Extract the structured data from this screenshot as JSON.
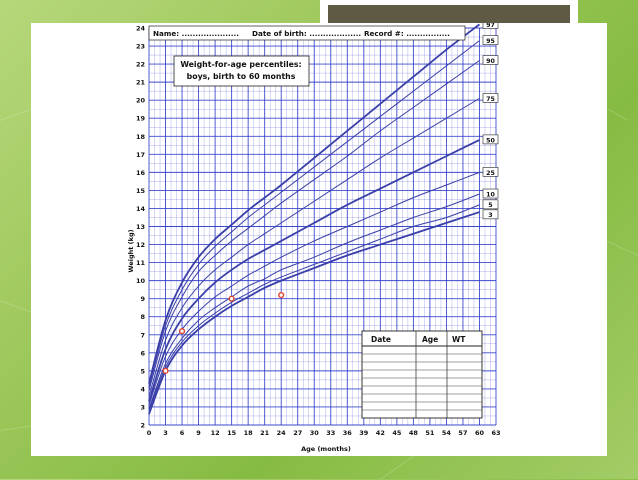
{
  "chart_data": {
    "type": "line",
    "title": "Weight-for-age percentiles:",
    "subtitle": "boys, birth to 60 months",
    "xlabel": "Age (months)",
    "ylabel": "Weight (kg)",
    "xlim": [
      0,
      63
    ],
    "ylim": [
      2,
      24
    ],
    "x_ticks": [
      0,
      3,
      6,
      9,
      12,
      15,
      18,
      21,
      24,
      27,
      30,
      33,
      36,
      39,
      42,
      45,
      48,
      51,
      54,
      57,
      60,
      63
    ],
    "y_ticks": [
      2,
      3,
      4,
      5,
      6,
      7,
      8,
      9,
      10,
      11,
      12,
      13,
      14,
      15,
      16,
      17,
      18,
      19,
      20,
      21,
      22,
      23,
      24
    ],
    "grid": true,
    "x": [
      0,
      3,
      6,
      9,
      12,
      15,
      18,
      21,
      24,
      30,
      36,
      42,
      48,
      54,
      60
    ],
    "series": [
      {
        "name": "97",
        "values": [
          4.3,
          7.8,
          9.9,
          11.3,
          12.3,
          13.1,
          13.9,
          14.6,
          15.3,
          16.8,
          18.3,
          19.8,
          21.3,
          22.8,
          24.2
        ]
      },
      {
        "name": "95",
        "values": [
          4.1,
          7.5,
          9.5,
          10.9,
          11.9,
          12.7,
          13.5,
          14.2,
          14.9,
          16.3,
          17.7,
          19.1,
          20.5,
          21.9,
          23.3
        ]
      },
      {
        "name": "90",
        "values": [
          3.9,
          7.2,
          9.1,
          10.5,
          11.4,
          12.2,
          12.9,
          13.6,
          14.3,
          15.6,
          16.9,
          18.3,
          19.6,
          20.9,
          22.2
        ]
      },
      {
        "name": "75",
        "values": [
          3.6,
          6.7,
          8.5,
          9.7,
          10.6,
          11.3,
          12.0,
          12.6,
          13.2,
          14.4,
          15.6,
          16.8,
          17.9,
          19.0,
          20.1
        ]
      },
      {
        "name": "50",
        "values": [
          3.3,
          6.2,
          7.9,
          9.0,
          9.9,
          10.6,
          11.2,
          11.7,
          12.2,
          13.2,
          14.2,
          15.1,
          16.0,
          16.9,
          17.8
        ]
      },
      {
        "name": "25",
        "values": [
          3.1,
          5.8,
          7.3,
          8.3,
          9.1,
          9.7,
          10.3,
          10.8,
          11.3,
          12.2,
          13.0,
          13.8,
          14.6,
          15.3,
          16.0
        ]
      },
      {
        "name": "10",
        "values": [
          2.9,
          5.4,
          6.8,
          7.8,
          8.5,
          9.1,
          9.7,
          10.1,
          10.6,
          11.3,
          12.1,
          12.8,
          13.5,
          14.1,
          14.8
        ]
      },
      {
        "name": "5",
        "values": [
          2.8,
          5.2,
          6.6,
          7.5,
          8.2,
          8.8,
          9.3,
          9.8,
          10.2,
          10.9,
          11.6,
          12.3,
          13.0,
          13.5,
          14.2
        ]
      },
      {
        "name": "3",
        "values": [
          2.6,
          5.0,
          6.4,
          7.3,
          8.0,
          8.6,
          9.1,
          9.6,
          10.0,
          10.7,
          11.4,
          12.0,
          12.6,
          13.2,
          13.8
        ]
      }
    ],
    "measurements": [
      {
        "x": 3,
        "y": 5.0
      },
      {
        "x": 6,
        "y": 7.2
      },
      {
        "x": 15,
        "y": 9.0
      },
      {
        "x": 24,
        "y": 9.2
      }
    ]
  },
  "header": {
    "name_label": "Name: .....................",
    "dob_label": "Date of birth: ...................",
    "record_label": "Record #: ................"
  },
  "record_table": {
    "columns": [
      "Date",
      "Age",
      "WT"
    ],
    "empty_rows": 9
  },
  "colors": {
    "grid": "#2a37c8",
    "curve": "#3a3fa8",
    "marker": "#e0412a",
    "slide_background": "#8fc050",
    "accent_box": "#5f5a43"
  }
}
